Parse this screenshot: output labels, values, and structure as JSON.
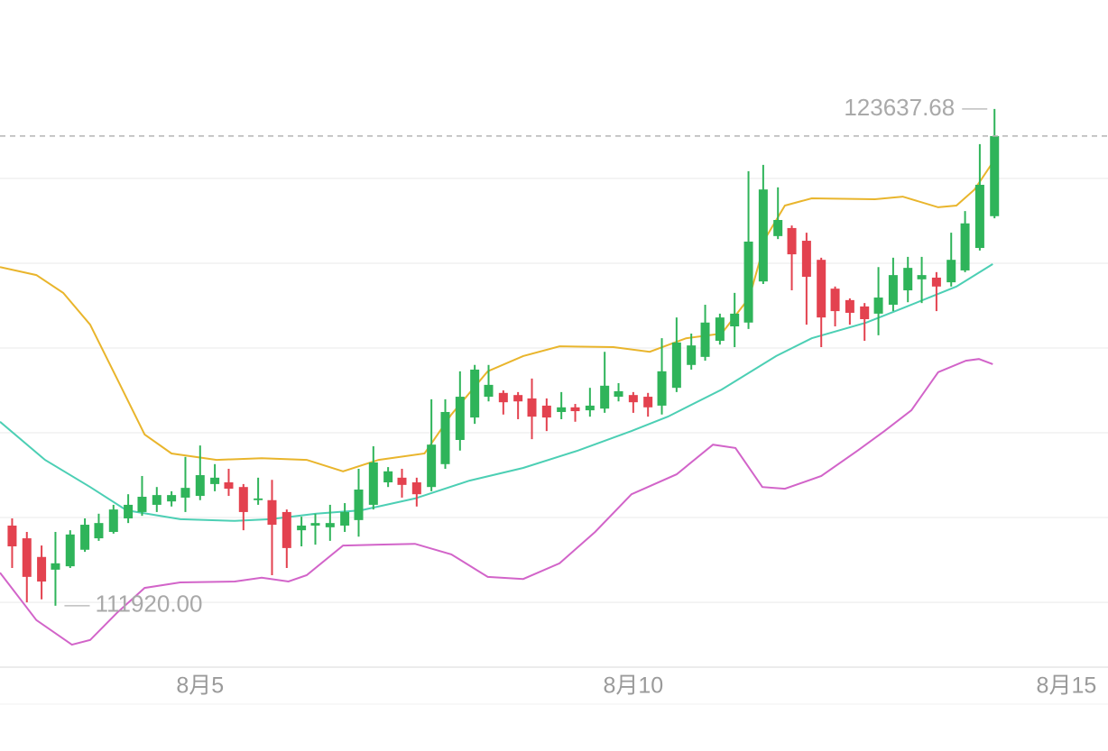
{
  "chart_data": {
    "type": "candlestick",
    "x": [
      2.83,
      3,
      3.17,
      3.33,
      3.5,
      3.67,
      3.83,
      4,
      4.17,
      4.33,
      4.5,
      4.67,
      4.83,
      5,
      5.17,
      5.33,
      5.5,
      5.67,
      5.83,
      6,
      6.17,
      6.33,
      6.5,
      6.67,
      6.83,
      7,
      7.17,
      7.33,
      7.5,
      7.67,
      7.83,
      8,
      8.17,
      8.33,
      8.5,
      8.67,
      8.83,
      9,
      9.17,
      9.33,
      9.5,
      9.67,
      9.83,
      10,
      10.17,
      10.33,
      10.5,
      10.67,
      10.83,
      11,
      11.17,
      11.33,
      11.5,
      11.67,
      11.83,
      12,
      12.17,
      12.33,
      12.5,
      12.67,
      12.83,
      13,
      13.17,
      13.33,
      13.5,
      13.67,
      13.83,
      14,
      14.17
    ],
    "open": [
      113810,
      113510,
      113070,
      112770,
      112850,
      113240,
      113510,
      113660,
      113980,
      114130,
      114300,
      114380,
      114470,
      114510,
      114790,
      114830,
      114720,
      114410,
      114410,
      114130,
      113700,
      113810,
      113770,
      113810,
      113940,
      114300,
      114830,
      114940,
      114830,
      114720,
      115260,
      115830,
      116360,
      116850,
      116940,
      116890,
      116810,
      116640,
      116490,
      116600,
      116530,
      116570,
      116850,
      116890,
      116850,
      116640,
      117060,
      117600,
      117790,
      118170,
      118510,
      118600,
      119570,
      120640,
      120830,
      120530,
      120080,
      119400,
      119130,
      118980,
      118810,
      119020,
      119360,
      119620,
      119660,
      119550,
      119830,
      120360,
      121110
    ],
    "high": [
      113980,
      113660,
      113340,
      113660,
      113700,
      113980,
      114090,
      114300,
      114550,
      114980,
      114720,
      114620,
      115430,
      115700,
      115260,
      115150,
      114790,
      114940,
      114890,
      114190,
      114020,
      114090,
      114300,
      114340,
      115150,
      115680,
      115190,
      115150,
      114940,
      116790,
      116790,
      117450,
      117600,
      117600,
      117000,
      116960,
      117280,
      116810,
      116960,
      116680,
      117060,
      117910,
      117170,
      116960,
      116940,
      118230,
      118720,
      118340,
      119020,
      118810,
      119300,
      122170,
      122320,
      121790,
      120890,
      120720,
      120130,
      119450,
      119170,
      119060,
      119910,
      120130,
      120150,
      120150,
      119790,
      120720,
      121230,
      122810,
      123637.68
    ],
    "low": [
      112810,
      112000,
      112070,
      111920,
      112810,
      113190,
      113450,
      113620,
      113870,
      114040,
      114130,
      114260,
      114130,
      114410,
      114620,
      114510,
      113700,
      114300,
      112640,
      112810,
      113320,
      113360,
      113450,
      113660,
      113550,
      114190,
      114720,
      114470,
      114260,
      114620,
      115150,
      115580,
      116210,
      116740,
      116430,
      116320,
      115850,
      116040,
      116320,
      116260,
      116380,
      116470,
      116740,
      116470,
      116380,
      116430,
      116960,
      117490,
      117700,
      118080,
      118020,
      118450,
      119510,
      120570,
      119360,
      118550,
      118020,
      118510,
      118550,
      118170,
      118300,
      118870,
      119080,
      119060,
      118870,
      119450,
      119790,
      120300,
      121060
    ],
    "close": [
      113320,
      112600,
      112490,
      112920,
      113600,
      113830,
      113870,
      114190,
      114300,
      114490,
      114530,
      114530,
      114700,
      115000,
      114940,
      114680,
      114130,
      114450,
      113830,
      113280,
      113810,
      113870,
      113870,
      114130,
      114660,
      115300,
      115090,
      114770,
      114550,
      115720,
      116490,
      116850,
      117490,
      117130,
      116720,
      116740,
      116380,
      116360,
      116600,
      116510,
      116640,
      117110,
      116980,
      116720,
      116600,
      117450,
      118130,
      118060,
      118600,
      118720,
      118810,
      120510,
      121740,
      121020,
      120210,
      119680,
      118720,
      118870,
      118830,
      118680,
      119190,
      119720,
      119890,
      119720,
      119450,
      120080,
      120940,
      121850,
      123000
    ],
    "high_value_labels": {
      "68": "123637.68"
    },
    "low_value_labels": {
      "3": "111920.00"
    },
    "up_color": "#2fb45a",
    "down_color": "#e3424f",
    "overlays": [
      {
        "color": "#e9b52c",
        "x": [
          2.69,
          3.11,
          3.42,
          3.73,
          4.04,
          4.36,
          4.67,
          5.19,
          5.71,
          6.23,
          6.65,
          7.06,
          7.59,
          7.9,
          8.32,
          8.73,
          9.15,
          9.77,
          10.19,
          10.61,
          11.02,
          11.34,
          11.54,
          11.75,
          12.06,
          12.79,
          13.11,
          13.52,
          13.73,
          13.94,
          14.15
        ],
        "values": [
          119910,
          119720,
          119300,
          118550,
          117280,
          115960,
          115510,
          115360,
          115400,
          115360,
          115090,
          115360,
          115510,
          116430,
          117450,
          117810,
          118040,
          118020,
          117910,
          118230,
          118340,
          119190,
          120640,
          121360,
          121530,
          121510,
          121570,
          121320,
          121360,
          121740,
          122380
        ]
      },
      {
        "color": "#4ccfb4",
        "x": [
          2.69,
          3.21,
          3.73,
          4.15,
          4.77,
          5.4,
          5.81,
          6.34,
          6.86,
          7.48,
          8.11,
          8.73,
          9.36,
          9.98,
          10.4,
          11.02,
          11.65,
          12.06,
          12.69,
          13.11,
          13.73,
          14.15
        ],
        "values": [
          116260,
          115360,
          114720,
          114170,
          113960,
          113920,
          113960,
          114090,
          114170,
          114450,
          114870,
          115170,
          115580,
          116040,
          116380,
          117020,
          117810,
          118230,
          118600,
          118940,
          119450,
          119980
        ]
      },
      {
        "color": "#d264c9",
        "x": [
          2.69,
          3.11,
          3.52,
          3.73,
          4.04,
          4.36,
          4.77,
          5.4,
          5.71,
          6.02,
          6.23,
          6.65,
          7.06,
          7.48,
          7.9,
          8.32,
          8.73,
          9.15,
          9.56,
          9.98,
          10.5,
          10.92,
          11.18,
          11.49,
          11.75,
          12.17,
          12.59,
          12.9,
          13.21,
          13.52,
          13.84,
          13.99,
          14.15
        ],
        "values": [
          112700,
          111580,
          111000,
          111110,
          111750,
          112340,
          112470,
          112490,
          112580,
          112490,
          112640,
          113340,
          113360,
          113380,
          113130,
          112600,
          112550,
          112920,
          113660,
          114550,
          115020,
          115720,
          115640,
          114720,
          114680,
          114980,
          115580,
          116040,
          116530,
          117430,
          117700,
          117740,
          117620
        ]
      }
    ],
    "xlim": [
      2.69,
      15.48
    ],
    "xticks": [
      {
        "value": 5,
        "label": "8月5"
      },
      {
        "value": 10,
        "label": "8月10"
      },
      {
        "value": 15,
        "label": "8月15"
      }
    ],
    "ylim": [
      110470,
      126210
    ],
    "ygrid": [
      112000,
      114000,
      116000,
      118000,
      120000,
      122000
    ],
    "last_price_line": true
  }
}
